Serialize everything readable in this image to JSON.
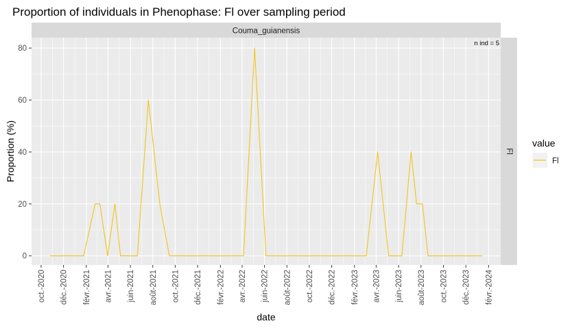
{
  "chart_data": {
    "type": "line",
    "title": "Proportion of individuals in Phenophase: Fl over sampling period",
    "facet_label": "Couma_guianensis",
    "strip_right_label": "Fl",
    "annotation": "n ind =  5",
    "xlabel": "date",
    "ylabel": "Proportion (%)",
    "ylim": [
      -3.5,
      84
    ],
    "xlim": [
      "2020-09-05",
      "2024-03-05"
    ],
    "y_ticks": [
      0,
      20,
      40,
      60,
      80
    ],
    "x_ticks": [
      {
        "date": "2020-10-01",
        "label": "oct.-2020"
      },
      {
        "date": "2020-12-01",
        "label": "déc.-2020"
      },
      {
        "date": "2021-02-01",
        "label": "févr.-2021"
      },
      {
        "date": "2021-04-01",
        "label": "avr.-2021"
      },
      {
        "date": "2021-06-01",
        "label": "juin-2021"
      },
      {
        "date": "2021-08-01",
        "label": "août-2021"
      },
      {
        "date": "2021-10-01",
        "label": "oct.-2021"
      },
      {
        "date": "2021-12-01",
        "label": "déc.-2021"
      },
      {
        "date": "2022-02-01",
        "label": "févr.-2022"
      },
      {
        "date": "2022-04-01",
        "label": "avr.-2022"
      },
      {
        "date": "2022-06-01",
        "label": "juin-2022"
      },
      {
        "date": "2022-08-01",
        "label": "août-2022"
      },
      {
        "date": "2022-10-01",
        "label": "oct.-2022"
      },
      {
        "date": "2022-12-01",
        "label": "déc.-2022"
      },
      {
        "date": "2023-02-01",
        "label": "févr.-2023"
      },
      {
        "date": "2023-04-01",
        "label": "avr.-2023"
      },
      {
        "date": "2023-06-01",
        "label": "juin-2023"
      },
      {
        "date": "2023-08-01",
        "label": "août-2023"
      },
      {
        "date": "2023-10-01",
        "label": "oct.-2023"
      },
      {
        "date": "2023-12-01",
        "label": "déc.-2023"
      },
      {
        "date": "2024-02-01",
        "label": "févr.-2024"
      }
    ],
    "grid": true,
    "legend": {
      "title": "value",
      "position": "right"
    },
    "series": [
      {
        "name": "Fl",
        "color": "#F2C417",
        "points": [
          {
            "x": "2020-10-25",
            "y": 0
          },
          {
            "x": "2021-01-25",
            "y": 0
          },
          {
            "x": "2021-02-25",
            "y": 20
          },
          {
            "x": "2021-03-10",
            "y": 20
          },
          {
            "x": "2021-03-31",
            "y": 0
          },
          {
            "x": "2021-04-20",
            "y": 20
          },
          {
            "x": "2021-05-05",
            "y": 0
          },
          {
            "x": "2021-06-20",
            "y": 0
          },
          {
            "x": "2021-07-20",
            "y": 60
          },
          {
            "x": "2021-08-20",
            "y": 20
          },
          {
            "x": "2021-09-15",
            "y": 0
          },
          {
            "x": "2022-04-05",
            "y": 0
          },
          {
            "x": "2022-05-05",
            "y": 80
          },
          {
            "x": "2022-06-05",
            "y": 0
          },
          {
            "x": "2023-03-05",
            "y": 0
          },
          {
            "x": "2023-04-05",
            "y": 40
          },
          {
            "x": "2023-05-05",
            "y": 0
          },
          {
            "x": "2023-06-10",
            "y": 0
          },
          {
            "x": "2023-07-05",
            "y": 40
          },
          {
            "x": "2023-07-20",
            "y": 20
          },
          {
            "x": "2023-08-05",
            "y": 20
          },
          {
            "x": "2023-08-20",
            "y": 0
          },
          {
            "x": "2024-01-15",
            "y": 0
          }
        ]
      }
    ]
  }
}
